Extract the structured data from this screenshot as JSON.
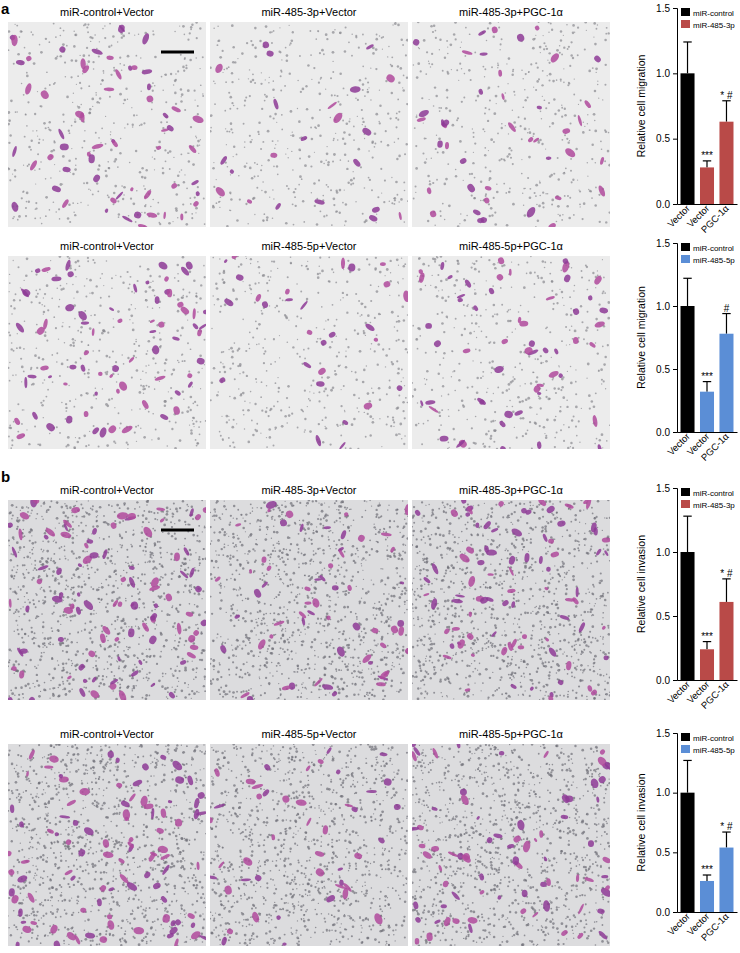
{
  "panels": [
    "a",
    "b"
  ],
  "image_rows": [
    [
      "miR-control+Vector",
      "miR-485-3p+Vector",
      "miR-485-3p+PGC-1α"
    ],
    [
      "miR-control+Vector",
      "miR-485-5p+Vector",
      "miR-485-5p+PGC-1α"
    ],
    [
      "miR-control+Vector",
      "miR-485-3p+Vector",
      "miR-485-3p+PGC-1α"
    ],
    [
      "miR-control+Vector",
      "miR-485-5p+Vector",
      "miR-485-5p+PGC-1α"
    ]
  ],
  "chart_data": [
    {
      "type": "bar",
      "ylabel": "Relative cell migration",
      "categories": [
        "Vector",
        "Vector",
        "PGC-1α"
      ],
      "series": [
        {
          "name": "miR-control",
          "color": "#000000",
          "values": [
            1.0,
            null,
            null
          ],
          "errors": [
            0.24,
            null,
            null
          ]
        },
        {
          "name": "miR-485-3p",
          "color": "#b94a48",
          "values": [
            null,
            0.28,
            0.63
          ],
          "errors": [
            null,
            0.05,
            0.16
          ]
        }
      ],
      "annotations": [
        null,
        "***",
        "* #"
      ],
      "ylim": [
        0,
        1.5
      ],
      "yticks": [
        {
          "value": 0,
          "label": "0.0"
        },
        0.5,
        {
          "value": 1,
          "label": "1.0"
        },
        1.5
      ],
      "legend": "top-right"
    },
    {
      "type": "bar",
      "ylabel": "Relative cell migration",
      "categories": [
        "Vector",
        "Vector",
        "PGC-1α"
      ],
      "series": [
        {
          "name": "miR-control",
          "color": "#000000",
          "values": [
            1.0,
            null,
            null
          ],
          "errors": [
            0.22,
            null,
            null
          ]
        },
        {
          "name": "miR-485-5p",
          "color": "#5b8ed6",
          "values": [
            null,
            0.32,
            0.78
          ],
          "errors": [
            null,
            0.08,
            0.16
          ]
        }
      ],
      "annotations": [
        null,
        "***",
        "#"
      ],
      "ylim": [
        0,
        1.5
      ],
      "yticks": [
        {
          "value": 0,
          "label": "0.0"
        },
        0.5,
        {
          "value": 1,
          "label": "1.0"
        },
        1.5
      ],
      "legend": "top-right"
    },
    {
      "type": "bar",
      "ylabel": "Relative cell invasion",
      "categories": [
        "Vector",
        "Vector",
        "PGC-1α"
      ],
      "series": [
        {
          "name": "miR-control",
          "color": "#000000",
          "values": [
            1.0,
            null,
            null
          ],
          "errors": [
            0.28,
            null,
            null
          ]
        },
        {
          "name": "miR-485-3p",
          "color": "#b94a48",
          "values": [
            null,
            0.24,
            0.61
          ],
          "errors": [
            null,
            0.06,
            0.18
          ]
        }
      ],
      "annotations": [
        null,
        "***",
        "* #"
      ],
      "ylim": [
        0,
        1.5
      ],
      "yticks": [
        {
          "value": 0,
          "label": "0.0"
        },
        0.5,
        {
          "value": 1,
          "label": "1.0"
        },
        1.5
      ],
      "legend": "top-right"
    },
    {
      "type": "bar",
      "ylabel": "Relative cell invasion",
      "categories": [
        "Vector",
        "Vector",
        "PGC-1α"
      ],
      "series": [
        {
          "name": "miR-control",
          "color": "#000000",
          "values": [
            1.0,
            null,
            null
          ],
          "errors": [
            0.27,
            null,
            null
          ]
        },
        {
          "name": "miR-485-5p",
          "color": "#5b8ed6",
          "values": [
            null,
            0.26,
            0.54
          ],
          "errors": [
            null,
            0.05,
            0.13
          ]
        }
      ],
      "annotations": [
        null,
        "***",
        "* #"
      ],
      "ylim": [
        0,
        1.5
      ],
      "yticks": [
        {
          "value": 0,
          "label": "0.0"
        },
        0.5,
        {
          "value": 1,
          "label": "1.0"
        },
        1.5
      ],
      "legend": "top-right"
    }
  ]
}
